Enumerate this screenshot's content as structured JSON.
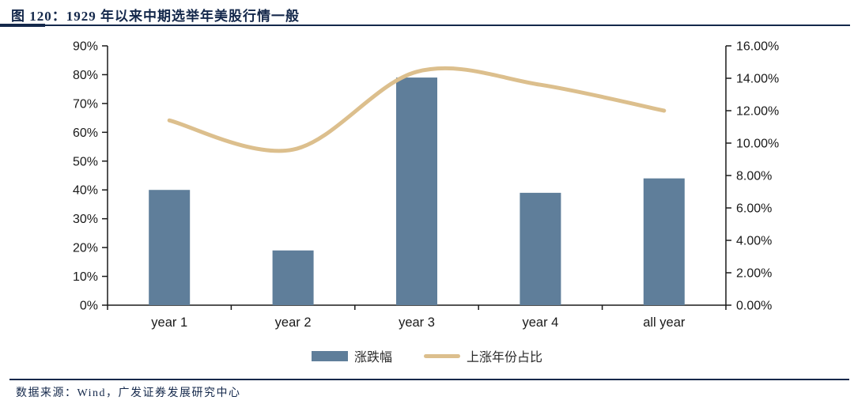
{
  "title": "图 120：1929 年以来中期选举年美股行情一般",
  "source": "数据来源：Wind，广发证券发展研究中心",
  "colors": {
    "navy": "#14284b",
    "bar": "#5f7e9a",
    "line": "#dcbf8d",
    "axis": "#1a1a1a",
    "tick_text": "#1a1a1a"
  },
  "legend": {
    "bar_label": "涨跌幅",
    "line_label": "上涨年份占比",
    "position": "bottom"
  },
  "chart_data": {
    "type": "bar",
    "subtype": "combo-bar-line",
    "categories": [
      "year 1",
      "year 2",
      "year 3",
      "year 4",
      "all year"
    ],
    "series": [
      {
        "name": "涨跌幅",
        "chart": "bar",
        "axis": "left",
        "unit": "%",
        "color": "#5f7e9a",
        "values": [
          40,
          19,
          79,
          39,
          44
        ]
      },
      {
        "name": "上涨年份占比",
        "chart": "line",
        "axis": "right",
        "unit": "%",
        "color": "#dcbf8d",
        "smooth": true,
        "values": [
          11.4,
          9.6,
          14.4,
          13.6,
          12.0
        ]
      }
    ],
    "left_axis": {
      "min": 0,
      "max": 90,
      "step": 10,
      "tick_labels": [
        "0%",
        "10%",
        "20%",
        "30%",
        "40%",
        "50%",
        "60%",
        "70%",
        "80%",
        "90%"
      ]
    },
    "right_axis": {
      "min": 0,
      "max": 16,
      "step": 2,
      "tick_labels": [
        "0.00%",
        "2.00%",
        "4.00%",
        "6.00%",
        "8.00%",
        "10.00%",
        "12.00%",
        "14.00%",
        "16.00%"
      ]
    },
    "grid": false,
    "legend_position": "bottom"
  }
}
